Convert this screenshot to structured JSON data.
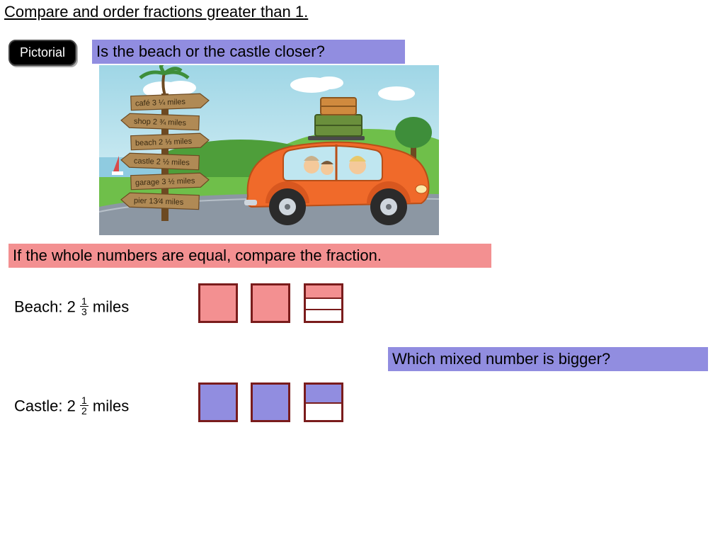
{
  "title": "Compare and order fractions greater than 1.",
  "badge": "Pictorial",
  "question1": "Is the beach or the castle closer?",
  "instruction": "If the whole numbers are equal, compare the fraction.",
  "question2": "Which mixed number is bigger?",
  "beach": {
    "label_prefix": "Beach: 2",
    "num": "1",
    "den": "3",
    "label_suffix": "miles",
    "fillColor": "#f39091",
    "third_parts": 3,
    "third_filled": 1
  },
  "castle": {
    "label_prefix": "Castle: 2",
    "num": "1",
    "den": "2",
    "label_suffix": "miles",
    "fillColor": "#918de0",
    "third_parts": 2,
    "third_filled": 1
  },
  "signs": [
    {
      "text": "café 3 ¼ miles",
      "dir": "right"
    },
    {
      "text": "shop 2 ¾ miles",
      "dir": "left"
    },
    {
      "text": "beach 2 ⅓ miles",
      "dir": "right"
    },
    {
      "text": "castle 2 ½ miles",
      "dir": "left"
    },
    {
      "text": "garage 3 ½ miles",
      "dir": "right"
    },
    {
      "text": "pier 13⁄4 miles",
      "dir": "left"
    }
  ],
  "colors": {
    "sky1": "#9fd6e6",
    "sky2": "#cdebf2",
    "cloud": "#ffffff",
    "grass1": "#6fbf4a",
    "grass2": "#4e9e3a",
    "road": "#8c97a3",
    "carBody": "#f06a2a",
    "carBody2": "#d8571f",
    "window": "#bfe6f0",
    "tire": "#2b2b2b",
    "hub": "#cfd6dd",
    "luggage1": "#6a8f3c",
    "luggage2": "#d08a3e",
    "post": "#6d4a22",
    "palm": "#3e8e3a"
  }
}
